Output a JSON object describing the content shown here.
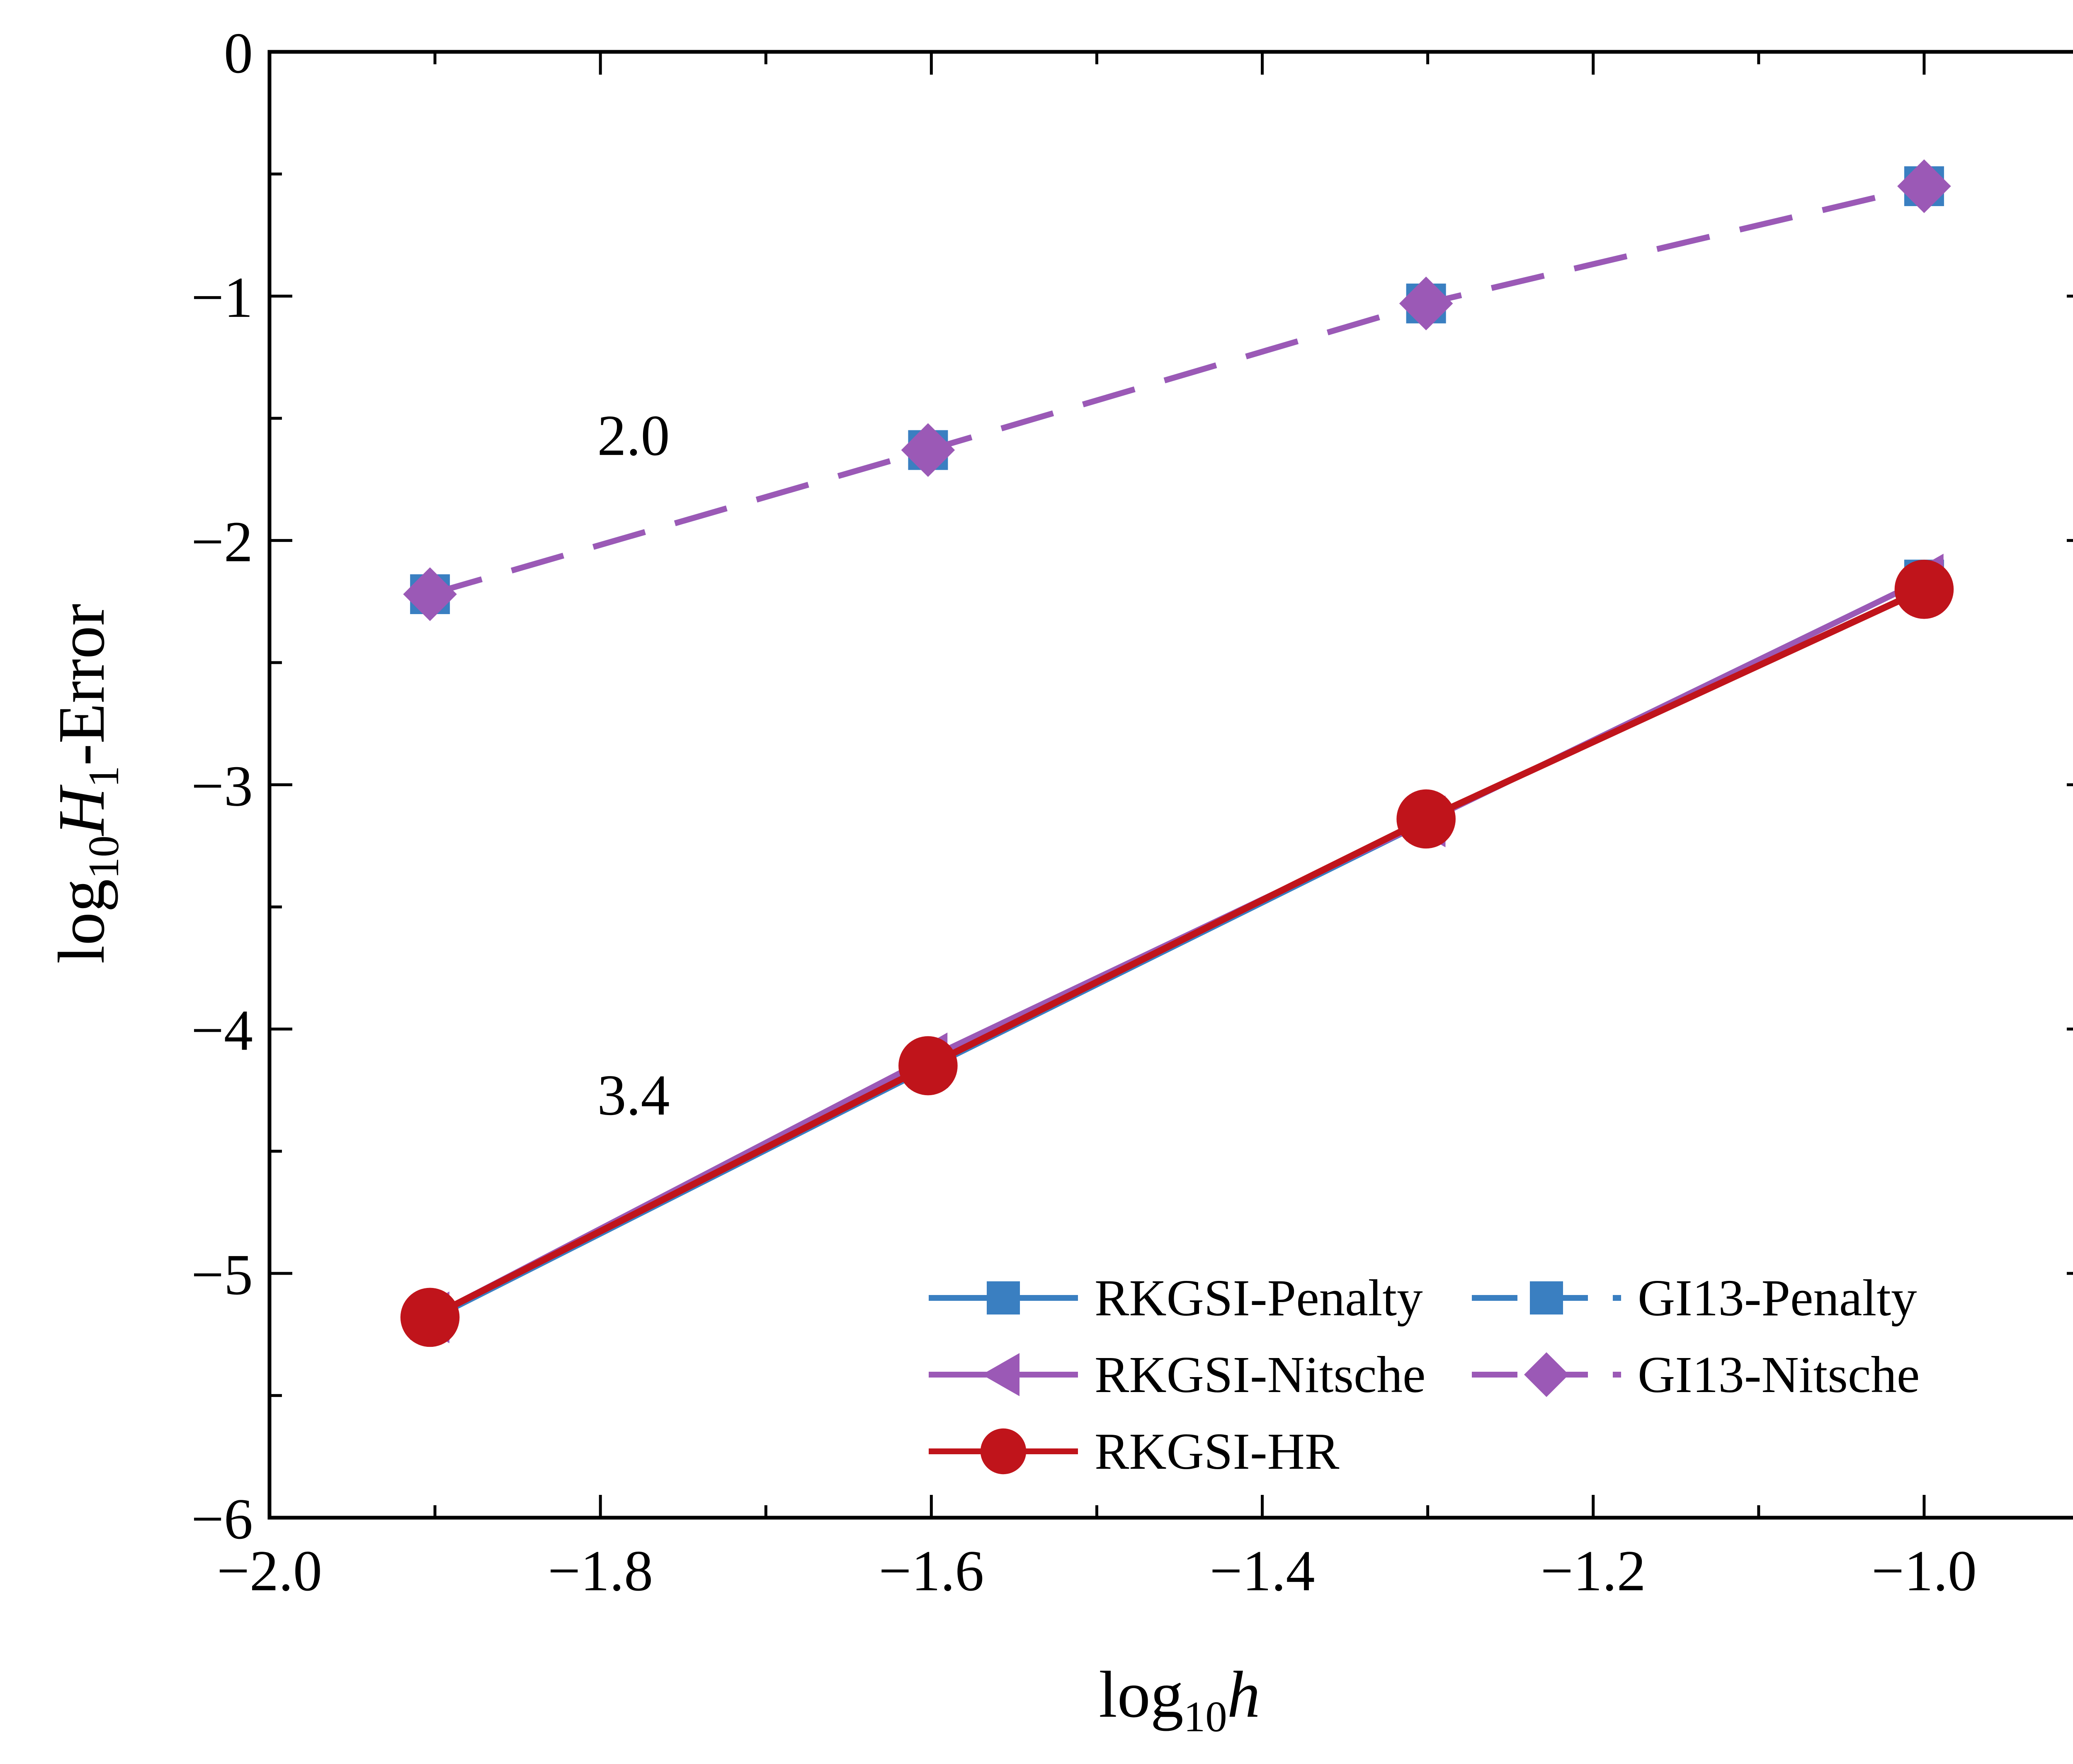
{
  "chart_data": {
    "type": "line",
    "xlabel": {
      "base": "log",
      "sub": "10",
      "var": "h"
    },
    "ylabel": {
      "base": "log",
      "sub": "10",
      "var": "H",
      "varsub": "1",
      "suffix": "-Error"
    },
    "xlim": [
      -2.0,
      -0.9
    ],
    "ylim": [
      -6,
      0
    ],
    "xticks": [
      -2.0,
      -1.8,
      -1.6,
      -1.4,
      -1.2,
      -1.0
    ],
    "xtick_labels": [
      "−2.0",
      "−1.8",
      "−1.6",
      "−1.4",
      "−1.2",
      "−1.0"
    ],
    "yticks": [
      0,
      -1,
      -2,
      -3,
      -4,
      -5,
      -6
    ],
    "ytick_labels": [
      "0",
      "−1",
      "−2",
      "−3",
      "−4",
      "−5",
      "−6"
    ],
    "grid": false,
    "legend_position": "bottom-right",
    "series": [
      {
        "name": "RKGSI-Penalty",
        "color": "#3a7fc1",
        "marker": "square",
        "dash": "solid",
        "x": [
          -1.903,
          -1.602,
          -1.301,
          -1.0
        ],
        "y": [
          -5.19,
          -4.16,
          -3.15,
          -2.16
        ]
      },
      {
        "name": "RKGSI-Nitsche",
        "color": "#9b59b6",
        "marker": "triangle-left",
        "dash": "solid",
        "x": [
          -1.903,
          -1.602,
          -1.301,
          -1.0
        ],
        "y": [
          -5.18,
          -4.12,
          -3.15,
          -2.16
        ]
      },
      {
        "name": "RKGSI-HR",
        "color": "#c0141b",
        "marker": "circle",
        "dash": "solid",
        "x": [
          -1.903,
          -1.602,
          -1.301,
          -1.0
        ],
        "y": [
          -5.18,
          -4.15,
          -3.14,
          -2.2
        ]
      },
      {
        "name": "GI13-Penalty",
        "color": "#3a7fc1",
        "marker": "square",
        "dash": "dashed",
        "x": [
          -1.903,
          -1.602,
          -1.301,
          -1.0
        ],
        "y": [
          -2.22,
          -1.63,
          -1.03,
          -0.55
        ]
      },
      {
        "name": "GI13-Nitsche",
        "color": "#9b59b6",
        "marker": "diamond",
        "dash": "dashed",
        "x": [
          -1.903,
          -1.602,
          -1.301,
          -1.0
        ],
        "y": [
          -2.22,
          -1.63,
          -1.03,
          -0.55
        ]
      }
    ],
    "annotations": [
      {
        "text": "2.0",
        "x": -1.78,
        "y": -1.65
      },
      {
        "text": "3.4",
        "x": -1.78,
        "y": -4.35
      }
    ]
  }
}
